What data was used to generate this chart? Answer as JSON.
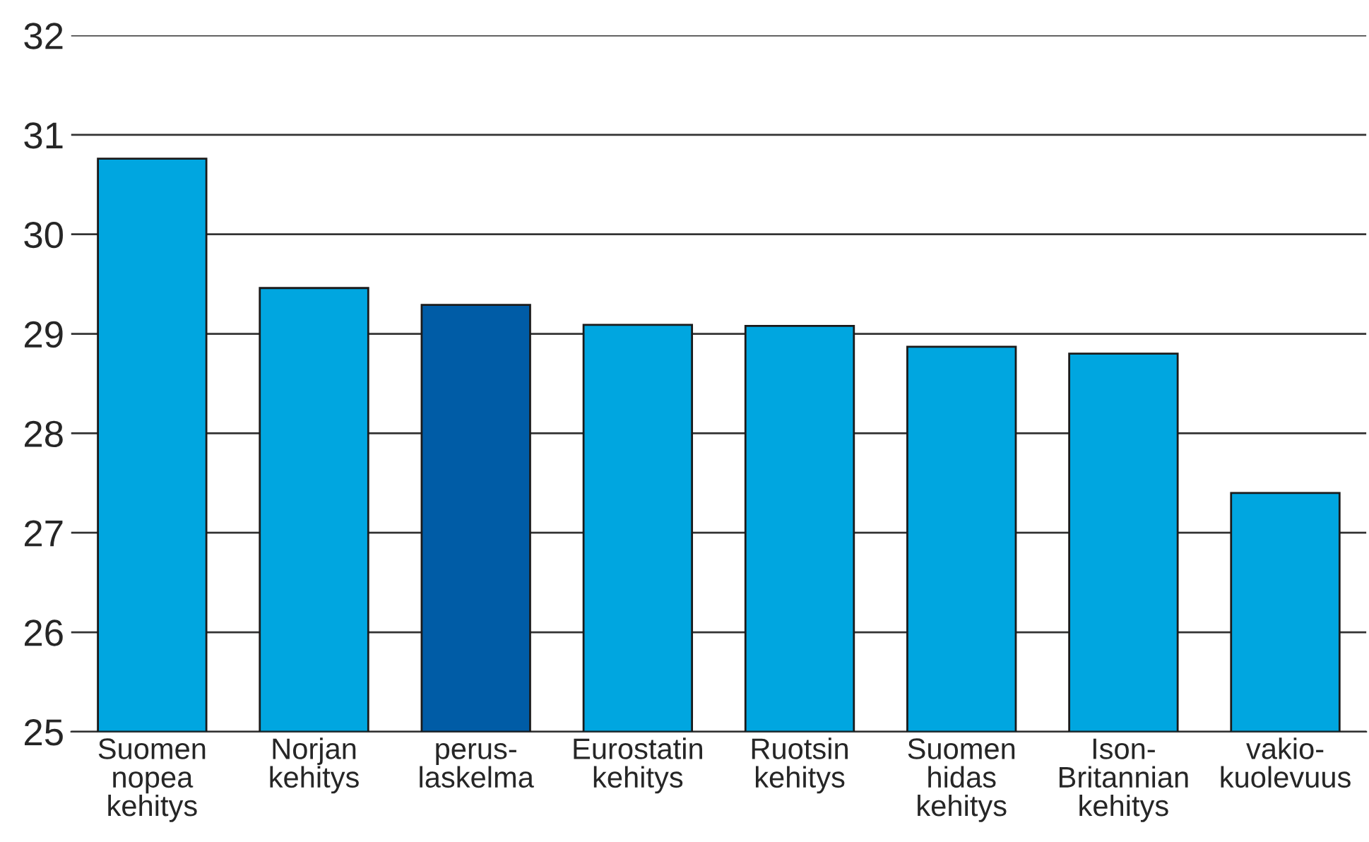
{
  "chart_data": {
    "type": "bar",
    "categories": [
      "Suomen\nnopea\nkehitys",
      "Norjan\nkehitys",
      "perus-\nlaskelma",
      "Eurostatin\nkehitys",
      "Ruotsin\nkehitys",
      "Suomen\nhidas\nkehitys",
      "Ison-\nBritannian\nkehitys",
      "vakio-\nkuolevuus"
    ],
    "values": [
      30.76,
      29.46,
      29.29,
      29.09,
      29.08,
      28.87,
      28.8,
      27.4
    ],
    "colors": [
      "#00a6e0",
      "#00a6e0",
      "#005ca6",
      "#00a6e0",
      "#00a6e0",
      "#00a6e0",
      "#00a6e0",
      "#00a6e0"
    ],
    "ylim": [
      25,
      32
    ],
    "yticks": [
      25,
      26,
      27,
      28,
      29,
      30,
      31,
      32
    ],
    "grid": "y",
    "legend": false
  }
}
